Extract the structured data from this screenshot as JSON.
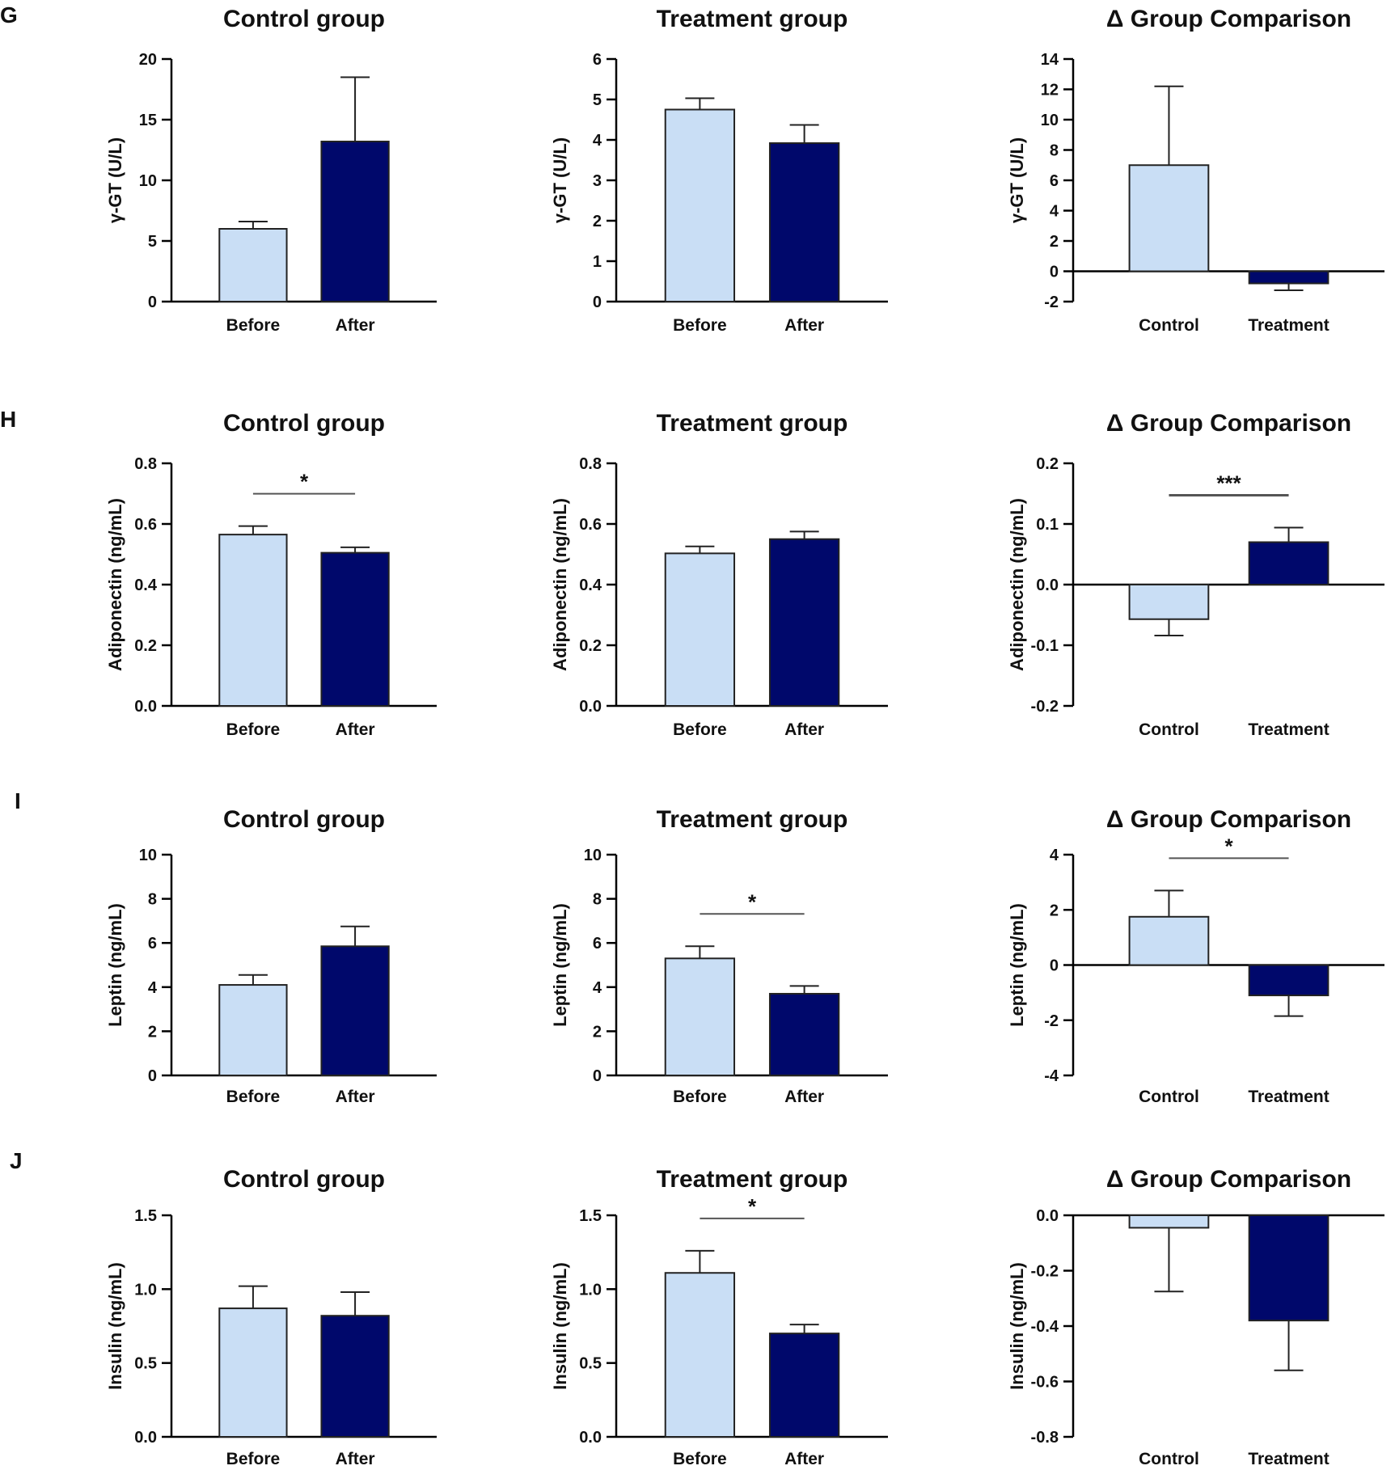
{
  "figure": {
    "row_labels": [
      "G",
      "H",
      "I",
      "J"
    ]
  },
  "colors": {
    "light": "#c9def5",
    "dark": "#00086b",
    "axis": "#000000",
    "bracket": "#555555"
  },
  "chart_data": [
    {
      "type": "bar",
      "title": "Control group",
      "ylabel": "γ-GT (U/L)",
      "ylim": [
        0,
        20
      ],
      "yticks": [
        0,
        5,
        10,
        15,
        20
      ],
      "ytick_labels": [
        "0",
        "5",
        "10",
        "15",
        "20"
      ],
      "categories": [
        "Before",
        "After"
      ],
      "values": [
        6.0,
        13.2
      ],
      "errors": [
        0.6,
        5.3
      ],
      "significance": null
    },
    {
      "type": "bar",
      "title": "Treatment group",
      "ylabel": "γ-GT (U/L)",
      "ylim": [
        0,
        6
      ],
      "yticks": [
        0,
        1,
        2,
        3,
        4,
        5,
        6
      ],
      "ytick_labels": [
        "0",
        "1",
        "2",
        "3",
        "4",
        "5",
        "6"
      ],
      "categories": [
        "Before",
        "After"
      ],
      "values": [
        4.75,
        3.92
      ],
      "errors": [
        0.28,
        0.45
      ],
      "significance": null
    },
    {
      "type": "bar",
      "title": "Δ Group Comparison",
      "ylabel": "γ-GT (U/L)",
      "ylim": [
        -2,
        14
      ],
      "yticks": [
        -2,
        0,
        2,
        4,
        6,
        8,
        10,
        12,
        14
      ],
      "ytick_labels": [
        "-2",
        "0",
        "2",
        "4",
        "6",
        "8",
        "10",
        "12",
        "14"
      ],
      "categories": [
        "Control",
        "Treatment"
      ],
      "values": [
        7.0,
        -0.8
      ],
      "errors": [
        5.2,
        0.45
      ],
      "significance": null
    },
    {
      "type": "bar",
      "title": "Control group",
      "ylabel": "Adiponectin (ng/mL)",
      "ylim": [
        0,
        0.8
      ],
      "yticks": [
        0,
        0.2,
        0.4,
        0.6,
        0.8
      ],
      "ytick_labels": [
        "0.0",
        "0.2",
        "0.4",
        "0.6",
        "0.8"
      ],
      "categories": [
        "Before",
        "After"
      ],
      "values": [
        0.565,
        0.505
      ],
      "errors": [
        0.028,
        0.018
      ],
      "significance": "*"
    },
    {
      "type": "bar",
      "title": "Treatment group",
      "ylabel": "Adiponectin (ng/mL)",
      "ylim": [
        0,
        0.8
      ],
      "yticks": [
        0,
        0.2,
        0.4,
        0.6,
        0.8
      ],
      "ytick_labels": [
        "0.0",
        "0.2",
        "0.4",
        "0.6",
        "0.8"
      ],
      "categories": [
        "Before",
        "After"
      ],
      "values": [
        0.503,
        0.55
      ],
      "errors": [
        0.023,
        0.025
      ],
      "significance": null
    },
    {
      "type": "bar",
      "title": "Δ Group Comparison",
      "ylabel": "Adiponectin (ng/mL)",
      "ylim": [
        -0.2,
        0.2
      ],
      "yticks": [
        -0.2,
        -0.1,
        0,
        0.1,
        0.2
      ],
      "ytick_labels": [
        "-0.2",
        "-0.1",
        "0.0",
        "0.1",
        "0.2"
      ],
      "categories": [
        "Control",
        "Treatment"
      ],
      "values": [
        -0.057,
        0.07
      ],
      "errors": [
        0.027,
        0.024
      ],
      "significance": "***"
    },
    {
      "type": "bar",
      "title": "Control group",
      "ylabel": "Leptin (ng/mL)",
      "ylim": [
        0,
        10
      ],
      "yticks": [
        0,
        2,
        4,
        6,
        8,
        10
      ],
      "ytick_labels": [
        "0",
        "2",
        "4",
        "6",
        "8",
        "10"
      ],
      "categories": [
        "Before",
        "After"
      ],
      "values": [
        4.1,
        5.85
      ],
      "errors": [
        0.45,
        0.9
      ],
      "significance": null
    },
    {
      "type": "bar",
      "title": "Treatment group",
      "ylabel": "Leptin (ng/mL)",
      "ylim": [
        0,
        10
      ],
      "yticks": [
        0,
        2,
        4,
        6,
        8,
        10
      ],
      "ytick_labels": [
        "0",
        "2",
        "4",
        "6",
        "8",
        "10"
      ],
      "categories": [
        "Before",
        "After"
      ],
      "values": [
        5.3,
        3.7
      ],
      "errors": [
        0.55,
        0.35
      ],
      "significance": "*"
    },
    {
      "type": "bar",
      "title": "Δ Group Comparison",
      "ylabel": "Leptin (ng/mL)",
      "ylim": [
        -4,
        4
      ],
      "yticks": [
        -4,
        -2,
        0,
        2,
        4
      ],
      "ytick_labels": [
        "-4",
        "-2",
        "0",
        "2",
        "4"
      ],
      "categories": [
        "Control",
        "Treatment"
      ],
      "values": [
        1.75,
        -1.1
      ],
      "errors": [
        0.95,
        0.75
      ],
      "significance": "*"
    },
    {
      "type": "bar",
      "title": "Control group",
      "ylabel": "Insulin (ng/mL)",
      "ylim": [
        0,
        1.5
      ],
      "yticks": [
        0,
        0.5,
        1,
        1.5
      ],
      "ytick_labels": [
        "0.0",
        "0.5",
        "1.0",
        "1.5"
      ],
      "categories": [
        "Before",
        "After"
      ],
      "values": [
        0.87,
        0.82
      ],
      "errors": [
        0.15,
        0.16
      ],
      "significance": null
    },
    {
      "type": "bar",
      "title": "Treatment group",
      "ylabel": "Insulin (ng/mL)",
      "ylim": [
        0,
        1.5
      ],
      "yticks": [
        0,
        0.5,
        1,
        1.5
      ],
      "ytick_labels": [
        "0.0",
        "0.5",
        "1.0",
        "1.5"
      ],
      "categories": [
        "Before",
        "After"
      ],
      "values": [
        1.11,
        0.7
      ],
      "errors": [
        0.15,
        0.06
      ],
      "significance": "*"
    },
    {
      "type": "bar",
      "title": "Δ Group Comparison",
      "ylabel": "Insulin (ng/mL)",
      "ylim": [
        -0.8,
        0
      ],
      "yticks": [
        -0.8,
        -0.6,
        -0.4,
        -0.2,
        0
      ],
      "ytick_labels": [
        "-0.8",
        "-0.6",
        "-0.4",
        "-0.2",
        "0.0"
      ],
      "categories": [
        "Control",
        "Treatment"
      ],
      "values": [
        -0.045,
        -0.38
      ],
      "errors": [
        0.23,
        0.18
      ],
      "significance": null
    }
  ]
}
